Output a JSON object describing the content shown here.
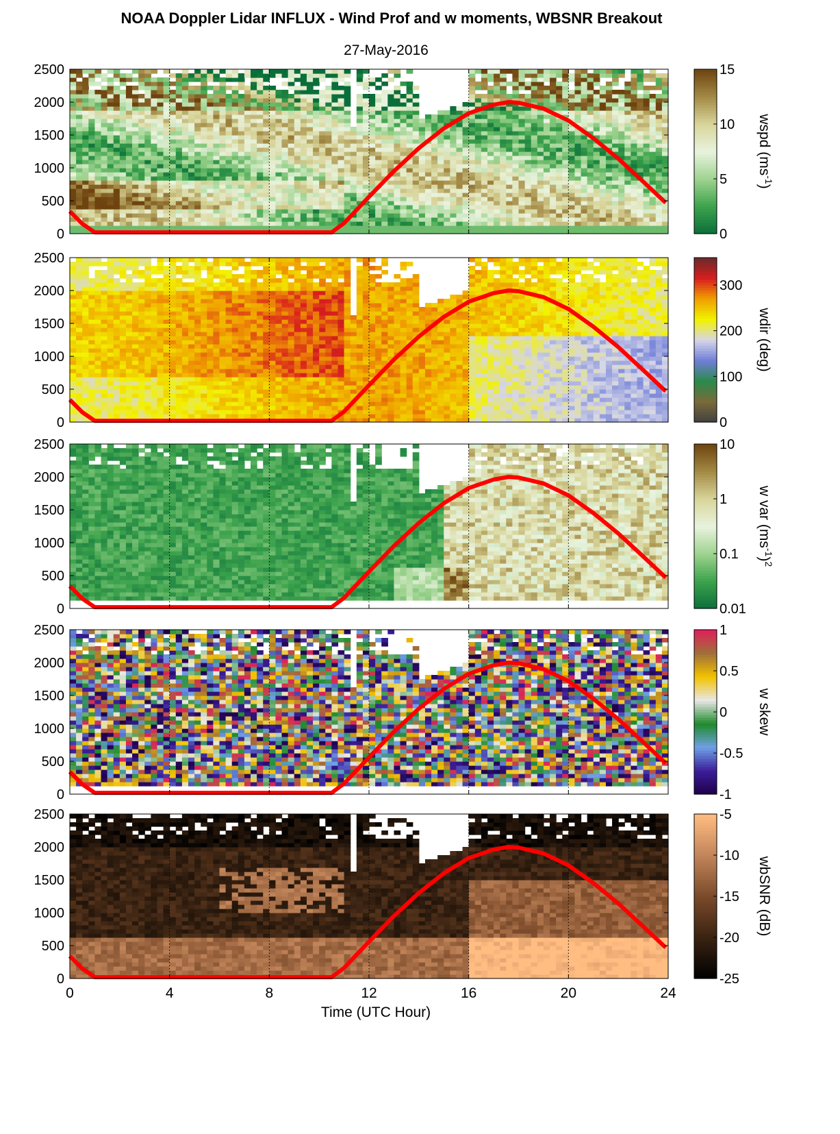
{
  "figure": {
    "title": "NOAA Doppler Lidar INFLUX - Wind Prof and w moments, WBSNR Breakout",
    "date": "27-May-2016"
  },
  "chart_data": [
    {
      "type": "heatmap",
      "id": "wspd",
      "cbar_label": "wspd (ms",
      "cbar_label_sup": "-1",
      "cbar_label_end": ")",
      "cbar_ticks": [
        "15",
        "10",
        "5",
        "0"
      ],
      "clim": [
        0,
        15
      ],
      "colormap": [
        "#0a6e3a",
        "#3da34d",
        "#9ed38f",
        "#e9f3de",
        "#d8d59a",
        "#a38a45",
        "#6e430f"
      ],
      "y_ticks": [
        "2500",
        "2000",
        "1500",
        "1000",
        "500",
        "0"
      ],
      "ylim": [
        0,
        2500
      ],
      "xlim": [
        0,
        24
      ]
    },
    {
      "type": "heatmap",
      "id": "wdir",
      "cbar_label": "wdir (deg)",
      "cbar_ticks": [
        "300",
        "200",
        "100",
        "0"
      ],
      "clim": [
        0,
        360
      ],
      "colormap": [
        "#404040",
        "#7a6a3a",
        "#2a8a4a",
        "#6f7fd8",
        "#d6d6e8",
        "#f2f200",
        "#f0a000",
        "#d81e1e",
        "#6a2a2a"
      ],
      "y_ticks": [
        "2500",
        "2000",
        "1500",
        "1000",
        "500",
        "0"
      ],
      "ylim": [
        0,
        2500
      ],
      "xlim": [
        0,
        24
      ]
    },
    {
      "type": "heatmap",
      "id": "wvar",
      "cbar_label": "w var (ms",
      "cbar_label_sup": "-1",
      "cbar_label_end": ")",
      "cbar_label_sup2": "2",
      "cbar_ticks": [
        "10",
        "1",
        "0.1",
        "0.01"
      ],
      "clim": [
        0.01,
        10
      ],
      "scale": "log",
      "colormap": [
        "#0a6e3a",
        "#3da34d",
        "#9ed38f",
        "#e9f3de",
        "#d8d59a",
        "#a38a45",
        "#6e430f"
      ],
      "y_ticks": [
        "2500",
        "2000",
        "1500",
        "1000",
        "500",
        "0"
      ],
      "ylim": [
        0,
        2500
      ],
      "xlim": [
        0,
        24
      ]
    },
    {
      "type": "heatmap",
      "id": "wskew",
      "cbar_label": "w skew",
      "cbar_ticks": [
        "1",
        "0.5",
        "0",
        "-0.5",
        "-1"
      ],
      "clim": [
        -1,
        1
      ],
      "colormap": [
        "#1e004a",
        "#3c1e9a",
        "#6fa0e6",
        "#1f8a2a",
        "#e8e8e8",
        "#f2c200",
        "#a0703a",
        "#e0205a"
      ],
      "y_ticks": [
        "2500",
        "2000",
        "1500",
        "1000",
        "500",
        "0"
      ],
      "ylim": [
        0,
        2500
      ],
      "xlim": [
        0,
        24
      ]
    },
    {
      "type": "heatmap",
      "id": "wbsnr",
      "cbar_label": "wbSNR (dB)",
      "cbar_ticks": [
        "-5",
        "-10",
        "-15",
        "-20",
        "-25"
      ],
      "clim": [
        -25,
        -5
      ],
      "colormap": [
        "#000000",
        "#3a2312",
        "#7a4a2a",
        "#c2855a",
        "#ffbd82"
      ],
      "y_ticks": [
        "2500",
        "2000",
        "1500",
        "1000",
        "500",
        "0"
      ],
      "ylim": [
        0,
        2500
      ],
      "xlim": [
        0,
        24
      ],
      "x_ticks": [
        "0",
        "4",
        "8",
        "12",
        "16",
        "20",
        "24"
      ],
      "xlabel": "Time (UTC Hour)"
    }
  ],
  "overlay": {
    "type": "line",
    "color": "#ff0000",
    "x": [
      0,
      0.5,
      1,
      10.5,
      11,
      12,
      13,
      14,
      15,
      16,
      17,
      17.6,
      18,
      19,
      20,
      21,
      22,
      23,
      23.9
    ],
    "y": [
      340,
      150,
      20,
      20,
      160,
      560,
      950,
      1300,
      1600,
      1830,
      1960,
      2000,
      1990,
      1900,
      1720,
      1450,
      1140,
      790,
      470
    ]
  },
  "gridlines_x": [
    4,
    8,
    12,
    16,
    20
  ]
}
